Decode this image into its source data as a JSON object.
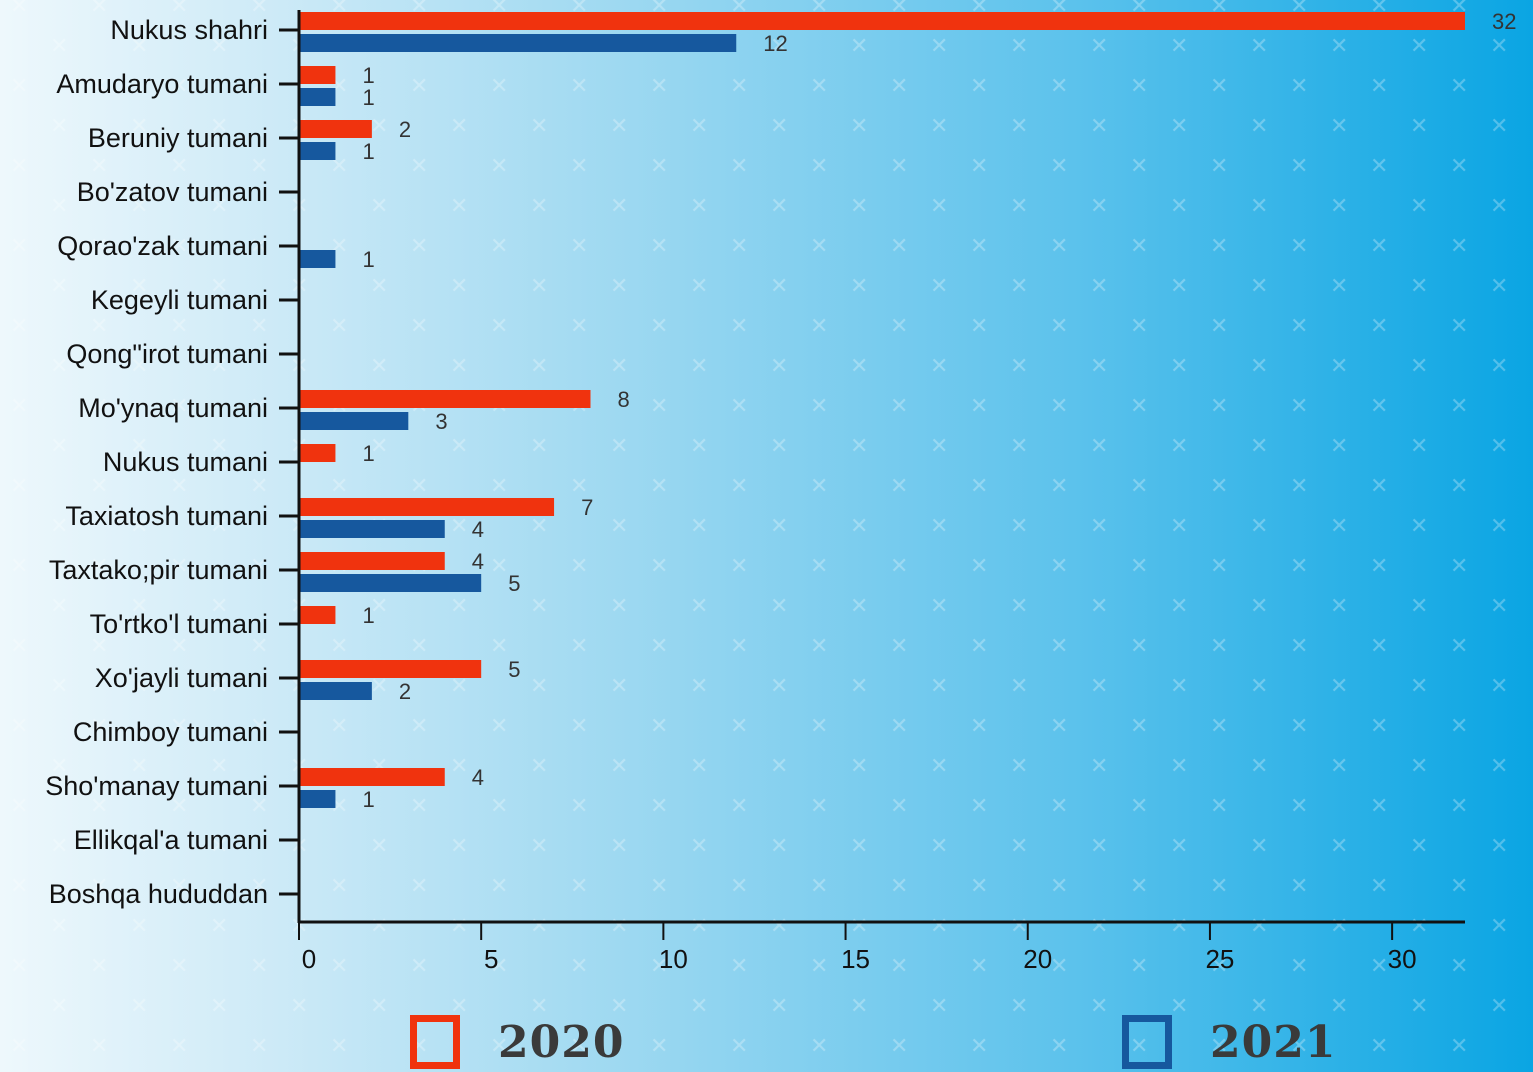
{
  "colors": {
    "series_2020": "#f0330e",
    "series_2021": "#16589e",
    "axis": "#111111",
    "label": "#333333"
  },
  "legend": [
    {
      "label": "2020",
      "color": "#f0330e"
    },
    {
      "label": "2021",
      "color": "#16589e"
    }
  ],
  "chart_data": {
    "type": "bar",
    "orientation": "horizontal",
    "categories": [
      "Nukus shahri",
      "Amudaryo tumani",
      "Beruniy tumani",
      "Bo'zatov tumani",
      "Qorao'zak tumani",
      "Kegeyli tumani",
      "Qong\"irot tumani",
      "Mo'ynaq tumani",
      "Nukus tumani",
      "Taxiatosh tumani",
      "Taxtako;pir tumani",
      "To'rtko'l tumani",
      "Xo'jayli tumani",
      "Chimboy tumani",
      "Sho'manay tumani",
      "Ellikqal'a tumani",
      "Boshqa hududdan"
    ],
    "series": [
      {
        "name": "2020",
        "values": [
          32,
          1,
          2,
          null,
          null,
          null,
          null,
          8,
          1,
          7,
          4,
          1,
          5,
          null,
          4,
          null,
          null
        ]
      },
      {
        "name": "2021",
        "values": [
          12,
          1,
          1,
          null,
          1,
          null,
          null,
          3,
          null,
          4,
          5,
          null,
          2,
          null,
          1,
          null,
          null
        ]
      }
    ],
    "xlim": [
      0,
      32
    ],
    "xticks": [
      0,
      5,
      10,
      15,
      20,
      25,
      30
    ],
    "grid": false,
    "legend_position": "bottom"
  }
}
